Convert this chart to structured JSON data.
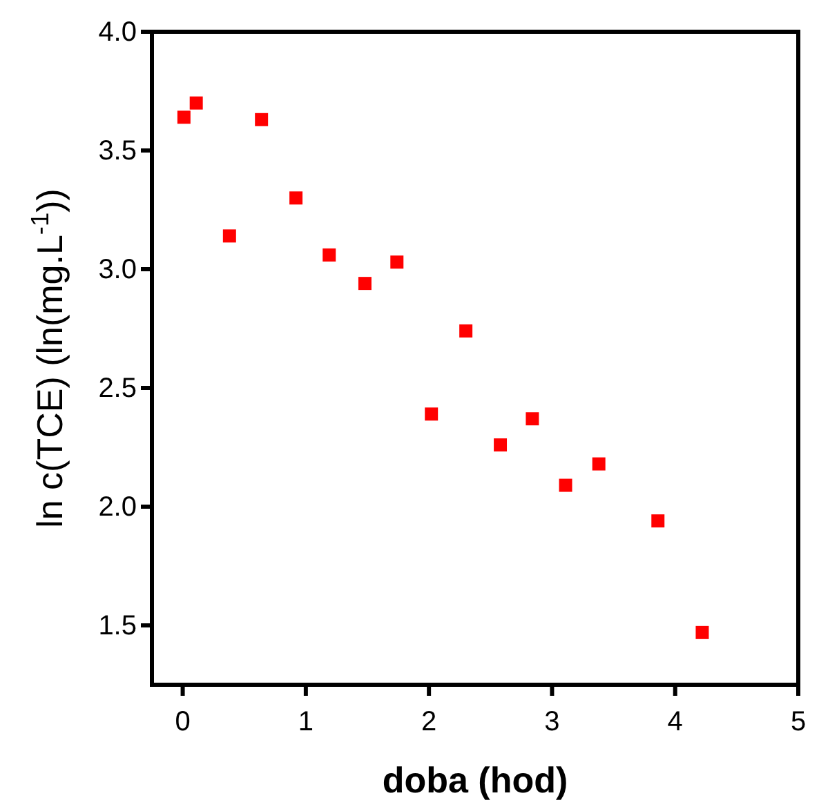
{
  "chart_data": {
    "type": "scatter",
    "xlabel": "doba (hod)",
    "ylabel": "ln c(TCE) (ln(mg.L$^{-1}$))",
    "x": [
      0.01,
      0.11,
      0.38,
      0.64,
      0.92,
      1.19,
      1.48,
      1.74,
      2.02,
      2.3,
      2.58,
      2.84,
      3.11,
      3.38,
      3.86,
      4.22
    ],
    "series": [
      {
        "color": "#ff0000",
        "values": [
          3.64,
          3.7,
          3.14,
          3.63,
          3.3,
          3.06,
          2.94,
          3.03,
          2.39,
          2.74,
          2.26,
          2.37,
          2.09,
          2.18,
          1.94,
          1.47
        ]
      }
    ],
    "xlim": [
      -0.25,
      5
    ],
    "ylim": [
      1.25,
      4.0
    ],
    "xticks": [
      0,
      1,
      2,
      3,
      4,
      5
    ],
    "yticks": [
      {
        "value": 1.5,
        "label": "1.5"
      },
      {
        "value": 2,
        "label": "2.0"
      },
      {
        "value": 2.5,
        "label": "2.5"
      },
      {
        "value": 3,
        "label": "3.0"
      },
      {
        "value": 3.5,
        "label": "3.5"
      },
      {
        "value": 4,
        "label": "4.0"
      }
    ],
    "marker": "square",
    "grid": false
  }
}
